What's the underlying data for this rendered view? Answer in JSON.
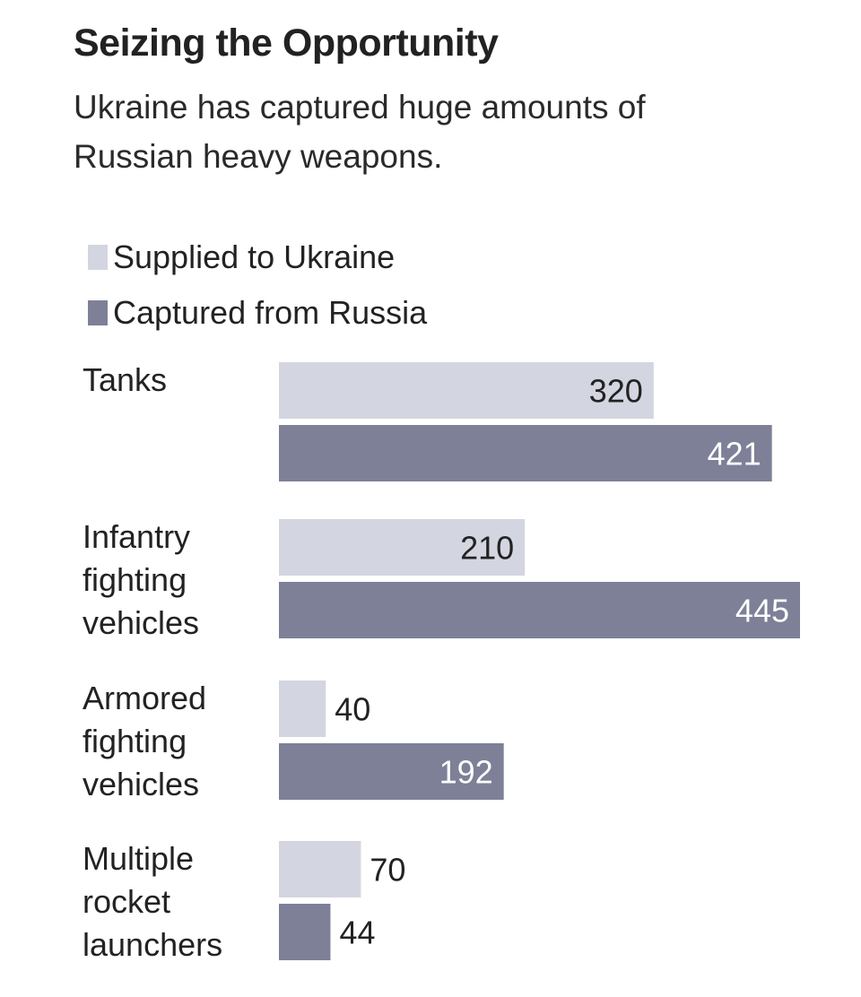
{
  "header": {
    "title": "Seizing the Opportunity",
    "subtitle": "Ukraine has captured huge amounts of Russian heavy weapons."
  },
  "legend": {
    "items": [
      {
        "label": "Supplied to Ukraine",
        "color": "#d3d5e0"
      },
      {
        "label": "Captured from Russia",
        "color": "#7d8097"
      }
    ]
  },
  "chart_data": {
    "type": "bar",
    "orientation": "horizontal",
    "categories": [
      [
        "Tanks"
      ],
      [
        "Infantry",
        "fighting",
        "vehicles"
      ],
      [
        "Armored",
        "fighting",
        "vehicles"
      ],
      [
        "Multiple",
        "rocket",
        "launchers"
      ]
    ],
    "series": [
      {
        "name": "Supplied to Ukraine",
        "values": [
          320,
          210,
          40,
          70
        ],
        "color": "#d3d5e0",
        "label_color": "#222222"
      },
      {
        "name": "Captured from Russia",
        "values": [
          421,
          445,
          192,
          44
        ],
        "color": "#7d8097",
        "label_color": "#ffffff"
      }
    ],
    "xlim": [
      0,
      445
    ],
    "grid": false,
    "legend_position": "top-left"
  }
}
